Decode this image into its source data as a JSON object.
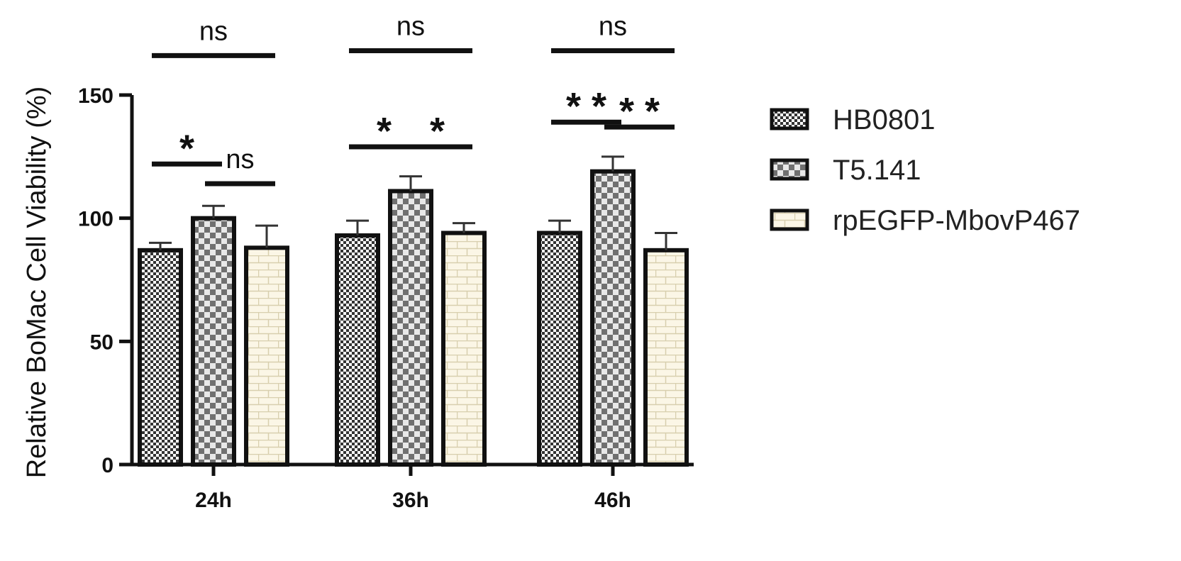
{
  "chart_data": {
    "type": "bar",
    "ylabel": "Relative BoMac Cell Viability (%)",
    "xlabel": "",
    "ylim": [
      0,
      150
    ],
    "yticks": [
      0,
      50,
      100,
      150
    ],
    "categories": [
      "24h",
      "36h",
      "46h"
    ],
    "series": [
      {
        "name": "HB0801",
        "values": [
          87,
          93,
          94
        ],
        "errors": [
          3,
          6,
          5
        ],
        "pattern": "dense-check"
      },
      {
        "name": "T5.141",
        "values": [
          100,
          111,
          119
        ],
        "errors": [
          5,
          6,
          6
        ],
        "pattern": "check"
      },
      {
        "name": "rpEGFP-MbovP467",
        "values": [
          88,
          94,
          87
        ],
        "errors": [
          9,
          4,
          7
        ],
        "pattern": "brick"
      }
    ],
    "legend": "right",
    "grid": false,
    "significance": [
      {
        "category": 0,
        "from": 0,
        "to": 1,
        "level": 122,
        "label": "*"
      },
      {
        "category": 0,
        "from": 1,
        "to": 2,
        "level": 114,
        "label": "ns"
      },
      {
        "category": 0,
        "from": 0,
        "to": 2,
        "level": 166,
        "label": "ns"
      },
      {
        "category": 1,
        "from": 0,
        "to": 1,
        "level": 129,
        "label": "*"
      },
      {
        "category": 1,
        "from": 1,
        "to": 2,
        "level": 129,
        "label": "*"
      },
      {
        "category": 1,
        "from": 0,
        "to": 2,
        "level": 168,
        "label": "ns"
      },
      {
        "category": 2,
        "from": 0,
        "to": 1,
        "level": 139,
        "label": "**"
      },
      {
        "category": 2,
        "from": 1,
        "to": 2,
        "level": 137,
        "label": "**"
      },
      {
        "category": 2,
        "from": 0,
        "to": 2,
        "level": 168,
        "label": "ns"
      }
    ]
  }
}
